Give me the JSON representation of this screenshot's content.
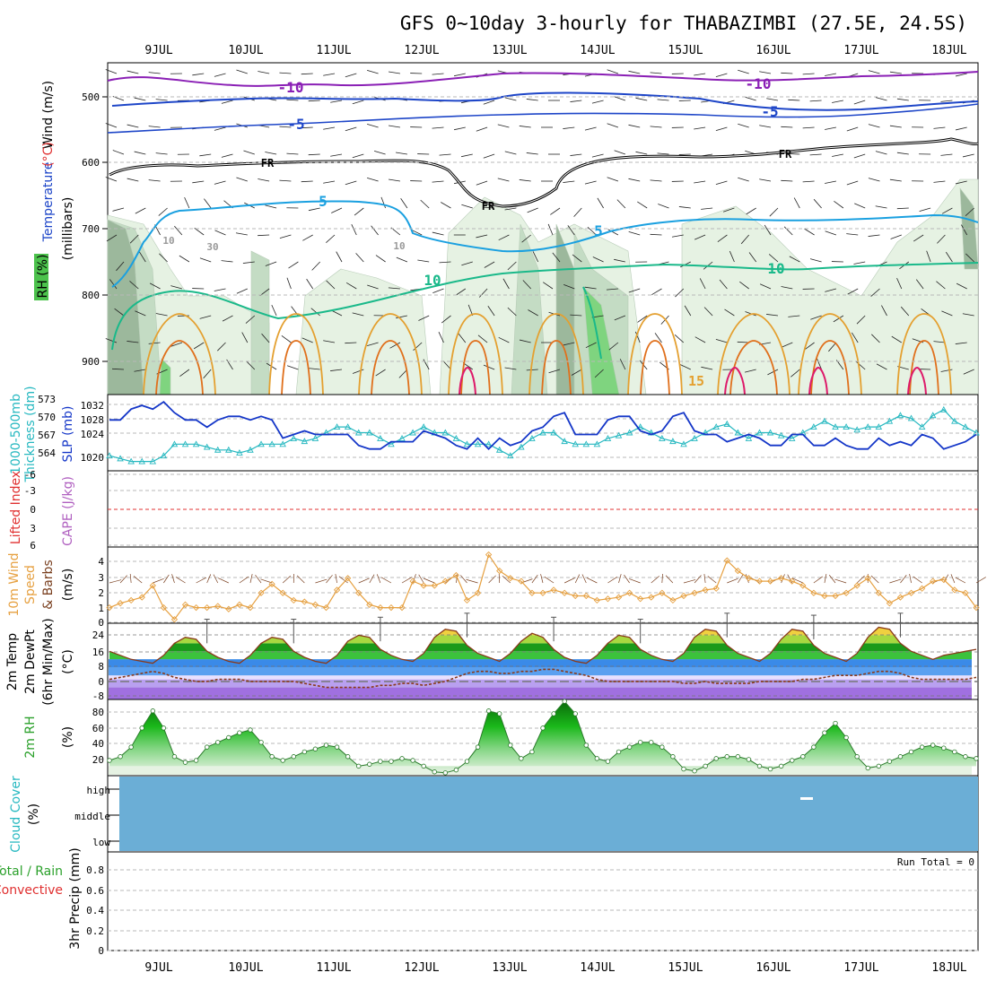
{
  "title": "GFS 0~10day 3-hourly for THABAZIMBI (27.5E, 24.5S)",
  "dates": [
    "9JUL",
    "10JUL",
    "11JUL",
    "12JUL",
    "13JUL",
    "14JUL",
    "15JUL",
    "16JUL",
    "17JUL",
    "18JUL"
  ],
  "colors": {
    "wind_barb": "#222222",
    "temp_neg10": "#8a1fb5",
    "temp_neg5": "#1e46c8",
    "freezing": "#000000",
    "temp_5": "#1aa0e0",
    "temp_10": "#1ab98a",
    "temp_15": "#e4a030",
    "temp_20": "#e0701c",
    "temp_25": "#dd1a6a",
    "rh_light": "#e6f2e3",
    "rh_mid": "#c4dcc4",
    "rh_dark": "#9cb89c",
    "rh_green": "#7fd47f",
    "slp": "#1436c8",
    "thickness": "#26b8c0",
    "lifted_index": "#e03030",
    "wind10m_speed": "#e6a040",
    "wind10m_barb": "#7a4020",
    "cloud": "#6baed6",
    "cloud_mark": "#ffffff",
    "precip_total": "#2aa02a",
    "precip_conv": "#e03030"
  },
  "panels": {
    "upper": {
      "side_labels": [
        "Wind (m/s)",
        "Temperature",
        "(°C)",
        "RH (%)",
        "(millibars)"
      ],
      "yticks": [
        "500",
        "600",
        "700",
        "800",
        "900"
      ],
      "contour_labels": [
        "-10",
        "-10",
        "-5",
        "-5",
        "FR",
        "FR",
        "FR",
        "5",
        "5",
        "10",
        "10",
        "10",
        "10",
        "30",
        "15"
      ]
    },
    "slp": {
      "side_labels": [
        "1000-500mb",
        "Thickness (dm)",
        "SLP (mb)"
      ],
      "thickness_ticks": [
        "573",
        "570",
        "567",
        "564"
      ],
      "slp_ticks": [
        "1032",
        "1028",
        "1024",
        "1020"
      ]
    },
    "cape": {
      "side_labels": [
        "Lifted Index",
        "CAPE (J/kg)"
      ],
      "ticks": [
        "-6",
        "-3",
        "0",
        "3",
        "6"
      ]
    },
    "wind10m": {
      "side_labels": [
        "10m Wind",
        "Speed",
        "& Barbs",
        "(m/s)"
      ],
      "ticks": [
        "4",
        "3",
        "2",
        "1",
        "0"
      ]
    },
    "temp2m": {
      "side_labels": [
        "2m Temp",
        "2m DewPt",
        "(6hr Min/Max)",
        "(°C)"
      ],
      "ticks": [
        "24",
        "16",
        "8",
        "0",
        "-8"
      ]
    },
    "rh2m": {
      "side_labels": [
        "2m RH",
        "(%)"
      ],
      "ticks": [
        "80",
        "60",
        "40",
        "20"
      ]
    },
    "cloud": {
      "side_labels": [
        "Cloud Cover",
        "(%)"
      ],
      "levels": [
        "high",
        "middle",
        "low"
      ]
    },
    "precip": {
      "side_labels": [
        "Total / Rain",
        "Convective",
        "3hr Precip (mm)"
      ],
      "run_total": "Run Total = 0",
      "ticks": [
        "0.8",
        "0.6",
        "0.4",
        "0.2",
        "0"
      ]
    }
  },
  "chart_data": [
    {
      "type": "line",
      "name": "slp",
      "xlabel": "",
      "ylabel": "SLP (mb)",
      "ylim": [
        1016,
        1035
      ],
      "x": [
        0,
        1,
        2,
        3,
        4,
        5,
        6,
        7,
        8,
        9,
        10,
        11,
        12,
        13,
        14,
        15,
        16,
        17,
        18,
        19,
        20,
        21,
        22,
        23,
        24,
        25,
        26,
        27,
        28,
        29,
        30,
        31,
        32,
        33,
        34,
        35,
        36,
        37,
        38,
        39,
        40,
        41,
        42,
        43,
        44,
        45,
        46,
        47,
        48,
        49,
        50,
        51,
        52,
        53,
        54,
        55,
        56,
        57,
        58,
        59,
        60,
        61,
        62,
        63,
        64,
        65,
        66,
        67,
        68,
        69,
        70,
        71,
        72,
        73,
        74,
        75,
        76,
        77,
        78,
        79,
        80
      ],
      "values": [
        1029,
        1029,
        1032,
        1033,
        1032,
        1034,
        1031,
        1029,
        1029,
        1027,
        1029,
        1030,
        1030,
        1029,
        1030,
        1029,
        1024,
        1025,
        1026,
        1025,
        1025,
        1025,
        1025,
        1022,
        1021,
        1021,
        1023,
        1023,
        1023,
        1026,
        1025,
        1024,
        1022,
        1021,
        1024,
        1021,
        1024,
        1022,
        1023,
        1026,
        1027,
        1030,
        1031,
        1025,
        1025,
        1025,
        1029,
        1030,
        1030,
        1026,
        1025,
        1026,
        1030,
        1031,
        1026,
        1025,
        1025,
        1023,
        1024,
        1025,
        1024,
        1022,
        1022,
        1025,
        1025,
        1022,
        1022,
        1024,
        1022,
        1021,
        1021,
        1024,
        1022,
        1023,
        1022,
        1025,
        1024,
        1021,
        1022,
        1023,
        1025
      ]
    },
    {
      "type": "line",
      "name": "thickness",
      "xlabel": "",
      "ylabel": "1000-500mb Thickness (dm)",
      "ylim": [
        562,
        574
      ],
      "x": [
        0,
        1,
        2,
        3,
        4,
        5,
        6,
        7,
        8,
        9,
        10,
        11,
        12,
        13,
        14,
        15,
        16,
        17,
        18,
        19,
        20,
        21,
        22,
        23,
        24,
        25,
        26,
        27,
        28,
        29,
        30,
        31,
        32,
        33,
        34,
        35,
        36,
        37,
        38,
        39,
        40,
        41,
        42,
        43,
        44,
        45,
        46,
        47,
        48,
        49,
        50,
        51,
        52,
        53,
        54,
        55,
        56,
        57,
        58,
        59,
        60,
        61,
        62,
        63,
        64,
        65,
        66,
        67,
        68,
        69,
        70,
        71,
        72,
        73,
        74,
        75,
        76,
        77,
        78,
        79,
        80
      ],
      "values": [
        564,
        563.5,
        563,
        563,
        563,
        564,
        566,
        566,
        566,
        565.5,
        565,
        565,
        564.5,
        565,
        566,
        566,
        566,
        567,
        566.5,
        567,
        568,
        569,
        569,
        568,
        568,
        567,
        566,
        567,
        568,
        569,
        568,
        568,
        567,
        566,
        566,
        566,
        565,
        564,
        565.5,
        567,
        568,
        568,
        566.5,
        566,
        566,
        566,
        567,
        567.5,
        568,
        569,
        568,
        567,
        566.5,
        566,
        567,
        568,
        569,
        569.5,
        568,
        567,
        568,
        568,
        567.5,
        567,
        568,
        569,
        570,
        569,
        569,
        568.5,
        569,
        569,
        570,
        571,
        570.5,
        569,
        571,
        572,
        570,
        569,
        568
      ]
    },
    {
      "type": "line",
      "name": "wind10m_speed",
      "xlabel": "",
      "ylabel": "10m Wind Speed (m/s)",
      "ylim": [
        0,
        5
      ],
      "x": [
        0,
        1,
        2,
        3,
        4,
        5,
        6,
        7,
        8,
        9,
        10,
        11,
        12,
        13,
        14,
        15,
        16,
        17,
        18,
        19,
        20,
        21,
        22,
        23,
        24,
        25,
        26,
        27,
        28,
        29,
        30,
        31,
        32,
        33,
        34,
        35,
        36,
        37,
        38,
        39,
        40,
        41,
        42,
        43,
        44,
        45,
        46,
        47,
        48,
        49,
        50,
        51,
        52,
        53,
        54,
        55,
        56,
        57,
        58,
        59,
        60,
        61,
        62,
        63,
        64,
        65,
        66,
        67,
        68,
        69,
        70,
        71,
        72,
        73,
        74,
        75,
        76,
        77,
        78,
        79,
        80
      ],
      "values": [
        1.0,
        1.3,
        1.5,
        1.7,
        2.5,
        1.0,
        0.2,
        1.2,
        1.0,
        1.0,
        1.1,
        0.9,
        1.2,
        1.0,
        2.0,
        2.6,
        2.0,
        1.5,
        1.4,
        1.2,
        1.0,
        2.2,
        3.0,
        2.0,
        1.2,
        1.0,
        1.0,
        1.0,
        2.8,
        2.5,
        2.5,
        2.8,
        3.2,
        1.5,
        2.0,
        4.6,
        3.5,
        3.0,
        2.8,
        2.0,
        2.0,
        2.2,
        2.0,
        1.8,
        1.8,
        1.5,
        1.6,
        1.7,
        2.0,
        1.6,
        1.7,
        2.0,
        1.5,
        1.8,
        2.0,
        2.2,
        2.3,
        4.2,
        3.5,
        3.0,
        2.8,
        2.8,
        3.0,
        2.8,
        2.5,
        2.0,
        1.8,
        1.8,
        2.0,
        2.5,
        3.0,
        2.0,
        1.3,
        1.7,
        2.0,
        2.3,
        2.8,
        2.9,
        2.2,
        2.0,
        1.0
      ]
    },
    {
      "type": "line",
      "name": "temp2m",
      "xlabel": "",
      "ylabel": "2m Temp (°C)",
      "ylim": [
        -10,
        28
      ],
      "x": [
        0,
        1,
        2,
        3,
        4,
        5,
        6,
        7,
        8,
        9,
        10,
        11,
        12,
        13,
        14,
        15,
        16,
        17,
        18,
        19,
        20,
        21,
        22,
        23,
        24,
        25,
        26,
        27,
        28,
        29,
        30,
        31,
        32,
        33,
        34,
        35,
        36,
        37,
        38,
        39,
        40,
        41,
        42,
        43,
        44,
        45,
        46,
        47,
        48,
        49,
        50,
        51,
        52,
        53,
        54,
        55,
        56,
        57,
        58,
        59,
        60,
        61,
        62,
        63,
        64,
        65,
        66,
        67,
        68,
        69,
        70,
        71,
        72,
        73,
        74,
        75,
        76,
        77,
        78,
        79,
        80
      ],
      "values": [
        14,
        12,
        10,
        9,
        8,
        12,
        18,
        21,
        20,
        14,
        11,
        9,
        8,
        12,
        18,
        21,
        20,
        14,
        11,
        9,
        8,
        12,
        19,
        22,
        21,
        15,
        12,
        10,
        9,
        13,
        21,
        25,
        24,
        17,
        13,
        11,
        9,
        13,
        19,
        23,
        21,
        15,
        11,
        9,
        8,
        12,
        18,
        22,
        21,
        15,
        12,
        10,
        9,
        13,
        21,
        25,
        24,
        17,
        13,
        11,
        9,
        13,
        20,
        25,
        24,
        17,
        13,
        11,
        9,
        13,
        21,
        26,
        25,
        18,
        14,
        12,
        10,
        12,
        13,
        14,
        15
      ]
    },
    {
      "type": "line",
      "name": "dewpt2m",
      "xlabel": "",
      "ylabel": "2m DewPt (°C)",
      "ylim": [
        -10,
        28
      ],
      "x": [
        0,
        1,
        2,
        3,
        4,
        5,
        6,
        7,
        8,
        9,
        10,
        11,
        12,
        13,
        14,
        15,
        16,
        17,
        18,
        19,
        20,
        21,
        22,
        23,
        24,
        25,
        26,
        27,
        28,
        29,
        30,
        31,
        32,
        33,
        34,
        35,
        36,
        37,
        38,
        39,
        40,
        41,
        42,
        43,
        44,
        45,
        46,
        47,
        48,
        49,
        50,
        51,
        52,
        53,
        54,
        55,
        56,
        57,
        58,
        59,
        60,
        61,
        62,
        63,
        64,
        65,
        66,
        67,
        68,
        69,
        70,
        71,
        72,
        73,
        74,
        75,
        76,
        77,
        78,
        79,
        80
      ],
      "values": [
        0,
        1,
        2,
        3,
        4,
        3,
        1,
        0,
        -1,
        -1,
        0,
        0,
        0,
        -1,
        -1,
        -1,
        -1,
        -1,
        -2,
        -3,
        -4,
        -4,
        -4,
        -4,
        -4,
        -3,
        -3,
        -2,
        -2,
        -3,
        -2,
        -1,
        1,
        3,
        4,
        4,
        3,
        3,
        4,
        4,
        5,
        5,
        4,
        3,
        2,
        0,
        -1,
        -1,
        -1,
        -1,
        -1,
        -1,
        -1,
        -2,
        -2,
        -1,
        -2,
        -2,
        -2,
        -2,
        -1,
        -1,
        -1,
        -1,
        0,
        0,
        1,
        2,
        2,
        2,
        3,
        4,
        4,
        3,
        1,
        0,
        0,
        0,
        0,
        0,
        1
      ]
    },
    {
      "type": "area",
      "name": "rh2m",
      "xlabel": "",
      "ylabel": "2m RH (%)",
      "ylim": [
        10,
        90
      ],
      "x": [
        0,
        1,
        2,
        3,
        4,
        5,
        6,
        7,
        8,
        9,
        10,
        11,
        12,
        13,
        14,
        15,
        16,
        17,
        18,
        19,
        20,
        21,
        22,
        23,
        24,
        25,
        26,
        27,
        28,
        29,
        30,
        31,
        32,
        33,
        34,
        35,
        36,
        37,
        38,
        39,
        40,
        41,
        42,
        43,
        44,
        45,
        46,
        47,
        48,
        49,
        50,
        51,
        52,
        53,
        54,
        55,
        56,
        57,
        58,
        59,
        60,
        61,
        62,
        63,
        64,
        65,
        66,
        67,
        68,
        69,
        70,
        71,
        72,
        73,
        74,
        75,
        76,
        77,
        78,
        79,
        80
      ],
      "values": [
        26,
        30,
        40,
        60,
        78,
        60,
        30,
        24,
        26,
        40,
        45,
        50,
        55,
        58,
        45,
        30,
        26,
        30,
        35,
        38,
        42,
        40,
        30,
        20,
        22,
        25,
        25,
        28,
        26,
        20,
        14,
        13,
        16,
        25,
        40,
        78,
        75,
        42,
        28,
        35,
        60,
        75,
        88,
        75,
        42,
        28,
        25,
        35,
        40,
        45,
        45,
        40,
        30,
        17,
        15,
        20,
        28,
        30,
        30,
        27,
        20,
        17,
        20,
        26,
        30,
        40,
        55,
        65,
        50,
        30,
        18,
        20,
        25,
        30,
        35,
        40,
        42,
        39,
        35,
        30,
        28
      ]
    }
  ]
}
